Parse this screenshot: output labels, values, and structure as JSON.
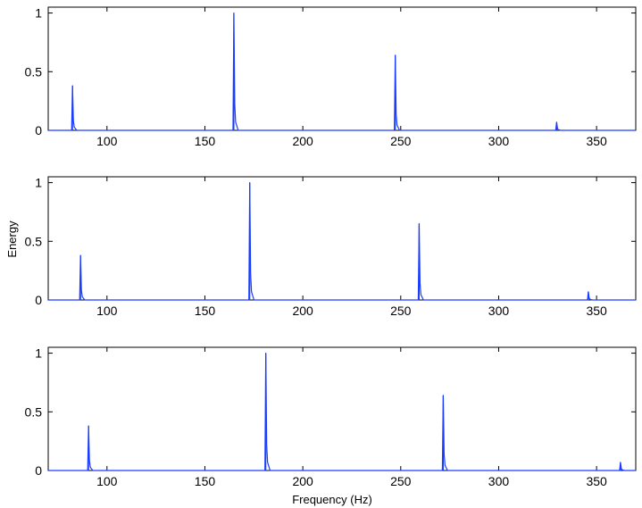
{
  "figure": {
    "xlabel": "Frequency (Hz)",
    "ylabel": "Energy"
  },
  "colors": {
    "line": "#1a3cff",
    "axes": "#000000",
    "background": "#ffffff"
  },
  "chart_data": [
    {
      "type": "line",
      "xlim": [
        70,
        370
      ],
      "ylim": [
        0,
        1.05
      ],
      "xticks": [
        100,
        150,
        200,
        250,
        300,
        350
      ],
      "yticks": [
        0,
        0.5,
        1
      ],
      "ytick_labels": [
        "0",
        "0.5",
        "1"
      ],
      "grid": false,
      "peaks": [
        {
          "x": 82.4,
          "y": 0.38
        },
        {
          "x": 164.8,
          "y": 1.0
        },
        {
          "x": 247.2,
          "y": 0.64
        },
        {
          "x": 329.6,
          "y": 0.07
        }
      ]
    },
    {
      "type": "line",
      "xlim": [
        70,
        370
      ],
      "ylim": [
        0,
        1.05
      ],
      "xticks": [
        100,
        150,
        200,
        250,
        300,
        350
      ],
      "yticks": [
        0,
        0.5,
        1
      ],
      "ytick_labels": [
        "0",
        "0.5",
        "1"
      ],
      "grid": false,
      "peaks": [
        {
          "x": 86.5,
          "y": 0.38
        },
        {
          "x": 172.9,
          "y": 1.0
        },
        {
          "x": 259.4,
          "y": 0.65
        },
        {
          "x": 345.8,
          "y": 0.07
        }
      ]
    },
    {
      "type": "line",
      "xlim": [
        70,
        370
      ],
      "ylim": [
        0,
        1.05
      ],
      "xticks": [
        100,
        150,
        200,
        250,
        300,
        350
      ],
      "yticks": [
        0,
        0.5,
        1
      ],
      "ytick_labels": [
        "0",
        "0.5",
        "1"
      ],
      "grid": false,
      "peaks": [
        {
          "x": 90.6,
          "y": 0.38
        },
        {
          "x": 181.1,
          "y": 1.0
        },
        {
          "x": 271.7,
          "y": 0.64
        },
        {
          "x": 362.2,
          "y": 0.07
        }
      ]
    }
  ]
}
